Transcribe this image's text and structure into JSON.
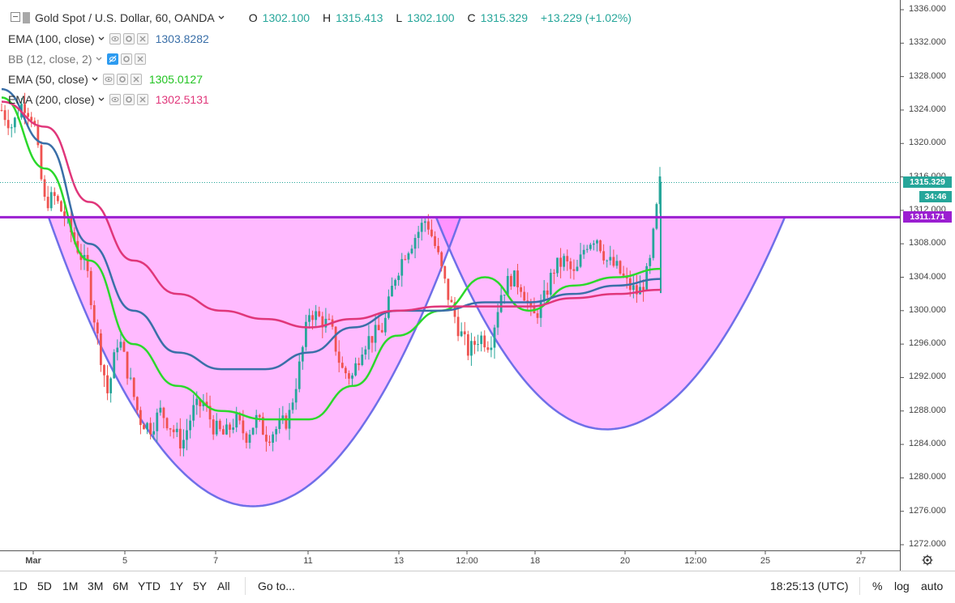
{
  "header": {
    "symbol": "Gold Spot / U.S. Dollar, 60, OANDA",
    "ohlc": [
      {
        "k": "O",
        "v": "1302.100"
      },
      {
        "k": "H",
        "v": "1315.413"
      },
      {
        "k": "L",
        "v": "1302.100"
      },
      {
        "k": "C",
        "v": "1315.329"
      }
    ],
    "change": "+13.229 (+1.02%)",
    "ohlc_color": "#26a69a"
  },
  "indicators": [
    {
      "label": "EMA (100, close)",
      "value": "1303.8282",
      "color": "#3a6fa8"
    },
    {
      "label": "BB (12, close, 2)",
      "value": "",
      "color": "#2d9bf0"
    },
    {
      "label": "EMA (50, close)",
      "value": "1305.0127",
      "color": "#2bd82b"
    },
    {
      "label": "EMA (200, close)",
      "value": "1302.5131",
      "color": "#e0367a"
    }
  ],
  "price_axis": {
    "ticks": [
      "1336.000",
      "1332.000",
      "1328.000",
      "1324.000",
      "1320.000",
      "1316.000",
      "1312.000",
      "1308.000",
      "1304.000",
      "1300.000",
      "1296.000",
      "1292.000",
      "1288.000",
      "1284.000",
      "1280.000",
      "1276.000",
      "1272.000"
    ],
    "last_price": "1315.329",
    "countdown": "34:46",
    "level_price": "1311.171",
    "last_price_color": "#26a69a",
    "level_color": "#9b1fd1"
  },
  "time_axis": {
    "ticks": [
      {
        "label": "Mar",
        "bold": true
      },
      {
        "label": "5"
      },
      {
        "label": "7"
      },
      {
        "label": "11"
      },
      {
        "label": "13"
      },
      {
        "label": "12:00"
      },
      {
        "label": "18"
      },
      {
        "label": "20"
      },
      {
        "label": "12:00"
      },
      {
        "label": "25"
      },
      {
        "label": "27"
      }
    ]
  },
  "toolbar": {
    "ranges": [
      "1D",
      "5D",
      "1M",
      "3M",
      "6M",
      "YTD",
      "1Y",
      "5Y",
      "All"
    ],
    "goto": "Go to...",
    "clock": "18:25:13 (UTC)",
    "percent": "%",
    "log": "log",
    "auto": "auto"
  },
  "chart_data": {
    "type": "line",
    "ylim": [
      1270.5,
      1337
    ],
    "ylabel": "",
    "xlabel": "",
    "colors": {
      "up": "#26a69a",
      "down": "#ef5350",
      "pattern_fill": "#ff66ff",
      "pattern_stroke": "#6f6fe8"
    },
    "price_path": [
      1324,
      1322,
      1325,
      1323,
      1313,
      1313.5,
      1311,
      1308,
      1305,
      1297,
      1290,
      1297,
      1292,
      1287,
      1286,
      1288,
      1286,
      1284,
      1288,
      1289,
      1286,
      1285,
      1287,
      1285,
      1287,
      1285,
      1286,
      1287,
      1293,
      1300,
      1299,
      1298,
      1293,
      1292,
      1296,
      1297,
      1298,
      1304,
      1307,
      1309,
      1311,
      1307,
      1302,
      1298,
      1295,
      1297,
      1296,
      1302,
      1304,
      1303,
      1299,
      1301,
      1305,
      1306,
      1304,
      1308,
      1309,
      1306,
      1305,
      1303,
      1302,
      1305,
      1315.3
    ],
    "series": [
      {
        "name": "EMA (50, close)",
        "values": [
          1325.5,
          1317,
          1306,
          1296,
          1291,
          1288,
          1287,
          1287,
          1291,
          1297,
          1300,
          1304,
          1300,
          1303,
          1304,
          1305
        ]
      },
      {
        "name": "EMA (100, close)",
        "values": [
          1326.5,
          1320,
          1308,
          1300,
          1295,
          1293,
          1293,
          1295,
          1298,
          1300,
          1300,
          1301,
          1301,
          1302,
          1303,
          1303.8
        ]
      },
      {
        "name": "EMA (200, close)",
        "values": [
          1325,
          1322,
          1313,
          1306,
          1302,
          1300,
          1299,
          1298,
          1299,
          1300,
          1300.5,
          1300.5,
          1300.5,
          1301.5,
          1302,
          1302.5
        ]
      }
    ],
    "horizontal_level": 1311.171
  }
}
